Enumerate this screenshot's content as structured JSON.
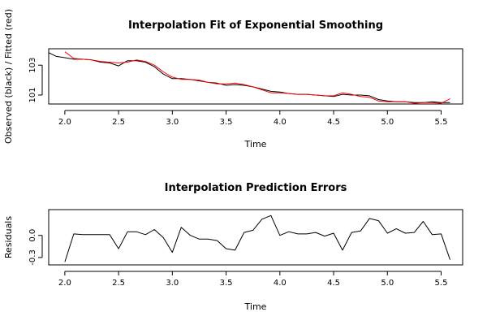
{
  "chart_data": [
    {
      "type": "line",
      "title": "Interpolation Fit of Exponential Smoothing",
      "xlabel": "Time",
      "ylabel": "Observed (black) / Fitted (red)",
      "xlim": [
        1.85,
        5.7
      ],
      "ylim": [
        100.4,
        104.1
      ],
      "x_ticks": [
        2.0,
        2.5,
        3.0,
        3.5,
        4.0,
        4.5,
        5.0,
        5.5
      ],
      "x_tick_labels": [
        "2.0",
        "2.5",
        "3.0",
        "3.5",
        "4.0",
        "4.5",
        "5.0",
        "5.5"
      ],
      "y_ticks": [
        101,
        103
      ],
      "y_tick_labels": [
        "101",
        "103"
      ],
      "series": [
        {
          "color": "#000000",
          "x": [
            1.833,
            1.917,
            2.0,
            2.083,
            2.167,
            2.25,
            2.333,
            2.417,
            2.5,
            2.583,
            2.667,
            2.75,
            2.833,
            2.917,
            3.0,
            3.083,
            3.167,
            3.25,
            3.333,
            3.417,
            3.5,
            3.583,
            3.667,
            3.75,
            3.833,
            3.917,
            4.0,
            4.083,
            4.167,
            4.25,
            4.333,
            4.417,
            4.5,
            4.583,
            4.667,
            4.75,
            4.833,
            4.917,
            5.0,
            5.083,
            5.167,
            5.25,
            5.333,
            5.417,
            5.5,
            5.583
          ],
          "values": [
            103.9,
            103.6,
            103.5,
            103.4,
            103.4,
            103.35,
            103.2,
            103.15,
            102.95,
            103.3,
            103.3,
            103.2,
            102.9,
            102.4,
            102.1,
            102.1,
            102.05,
            101.95,
            101.85,
            101.8,
            101.65,
            101.7,
            101.65,
            101.55,
            101.4,
            101.25,
            101.2,
            101.1,
            101.05,
            101.05,
            101.0,
            100.95,
            100.9,
            101.05,
            101.0,
            101.0,
            100.95,
            100.7,
            100.6,
            100.55,
            100.55,
            100.5,
            100.5,
            100.55,
            100.5,
            100.5
          ]
        },
        {
          "color": "#ff0000",
          "x": [
            2.0,
            2.083,
            2.167,
            2.25,
            2.333,
            2.417,
            2.5,
            2.583,
            2.667,
            2.75,
            2.833,
            2.917,
            3.0,
            3.083,
            3.167,
            3.25,
            3.333,
            3.417,
            3.5,
            3.583,
            3.667,
            3.75,
            3.833,
            3.917,
            4.0,
            4.083,
            4.167,
            4.25,
            4.333,
            4.417,
            4.5,
            4.583,
            4.667,
            4.75,
            4.833,
            4.917,
            5.0,
            5.083,
            5.167,
            5.25,
            5.333,
            5.417,
            5.5,
            5.583
          ],
          "values": [
            103.9,
            103.45,
            103.4,
            103.35,
            103.25,
            103.2,
            103.15,
            103.2,
            103.35,
            103.25,
            103.0,
            102.55,
            102.2,
            102.05,
            102.05,
            102.0,
            101.85,
            101.75,
            101.75,
            101.8,
            101.7,
            101.55,
            101.35,
            101.15,
            101.15,
            101.1,
            101.05,
            101.05,
            101.0,
            100.95,
            100.95,
            101.15,
            101.05,
            100.9,
            100.85,
            100.6,
            100.55,
            100.55,
            100.55,
            100.45,
            100.5,
            100.5,
            100.45,
            100.75
          ]
        }
      ]
    },
    {
      "type": "line",
      "title": "Interpolation Prediction Errors",
      "xlabel": "Time",
      "ylabel": "Residuals",
      "xlim": [
        1.85,
        5.7
      ],
      "ylim": [
        -0.4,
        0.35
      ],
      "x_ticks": [
        2.0,
        2.5,
        3.0,
        3.5,
        4.0,
        4.5,
        5.0,
        5.5
      ],
      "x_tick_labels": [
        "2.0",
        "2.5",
        "3.0",
        "3.5",
        "4.0",
        "4.5",
        "5.0",
        "5.5"
      ],
      "y_ticks": [
        -0.3,
        0.0
      ],
      "y_tick_labels": [
        "-0.3",
        "0.0"
      ],
      "series": [
        {
          "color": "#000000",
          "x": [
            2.0,
            2.083,
            2.167,
            2.25,
            2.333,
            2.417,
            2.5,
            2.583,
            2.667,
            2.75,
            2.833,
            2.917,
            3.0,
            3.083,
            3.167,
            3.25,
            3.333,
            3.417,
            3.5,
            3.583,
            3.667,
            3.75,
            3.833,
            3.917,
            4.0,
            4.083,
            4.167,
            4.25,
            4.333,
            4.417,
            4.5,
            4.583,
            4.667,
            4.75,
            4.833,
            4.917,
            5.0,
            5.083,
            5.167,
            5.25,
            5.333,
            5.417,
            5.5,
            5.583
          ],
          "values": [
            -0.36,
            0.02,
            0.01,
            0.01,
            0.01,
            0.01,
            -0.18,
            0.05,
            0.05,
            0.01,
            0.08,
            -0.03,
            -0.23,
            0.11,
            0.0,
            -0.05,
            -0.05,
            -0.07,
            -0.18,
            -0.2,
            0.04,
            0.07,
            0.22,
            0.27,
            0.0,
            0.05,
            0.02,
            0.02,
            0.04,
            -0.01,
            0.03,
            -0.2,
            0.04,
            0.06,
            0.23,
            0.2,
            0.03,
            0.09,
            0.03,
            0.04,
            0.19,
            0.01,
            0.02,
            -0.33
          ]
        }
      ]
    }
  ]
}
